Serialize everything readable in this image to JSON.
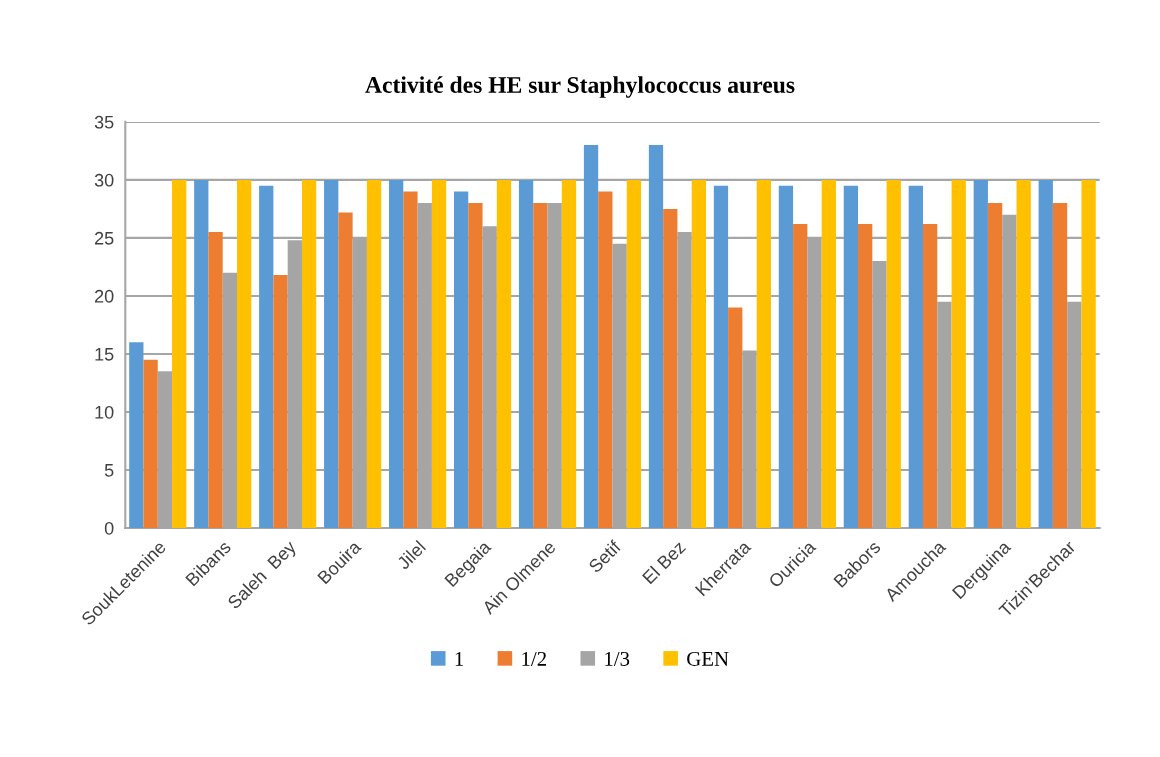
{
  "chart_data": {
    "type": "bar",
    "title": "Activité des HE sur Staphylococcus aureus",
    "categories": [
      "SoukLetenine",
      "Bibans",
      "Saleh  Bey",
      "Bouira",
      "Jilel",
      "Begaia",
      "Ain Olmene",
      "Setif",
      "El Bez",
      "Kherrata",
      "Ouricia",
      "Babors",
      "Amoucha",
      "Derguina",
      "Tizin’Bechar"
    ],
    "series": [
      {
        "name": "1",
        "color": "#5b9bd5",
        "values": [
          16,
          30,
          29.5,
          30,
          30,
          29,
          30,
          33,
          33,
          29.5,
          29.5,
          29.5,
          29.5,
          30,
          30
        ]
      },
      {
        "name": "1/2",
        "color": "#ed7d31",
        "values": [
          14.5,
          25.5,
          21.8,
          27.2,
          29,
          28,
          28,
          29,
          27.5,
          19,
          26.2,
          26.2,
          26.2,
          28,
          28
        ]
      },
      {
        "name": "1/3",
        "color": "#a5a5a5",
        "values": [
          13.5,
          22,
          24.8,
          25,
          28,
          26,
          28,
          24.5,
          25.5,
          15.3,
          25,
          23,
          19.5,
          27,
          19.5
        ]
      },
      {
        "name": "GEN",
        "color": "#ffc000",
        "values": [
          30,
          30,
          30,
          30,
          30,
          30,
          30,
          30,
          30,
          30,
          30,
          30,
          30,
          30,
          30
        ]
      }
    ],
    "ylim": [
      0,
      35
    ],
    "yticks": [
      0,
      5,
      10,
      15,
      20,
      25,
      30,
      35
    ],
    "grid": "y",
    "legend": "bottom"
  }
}
